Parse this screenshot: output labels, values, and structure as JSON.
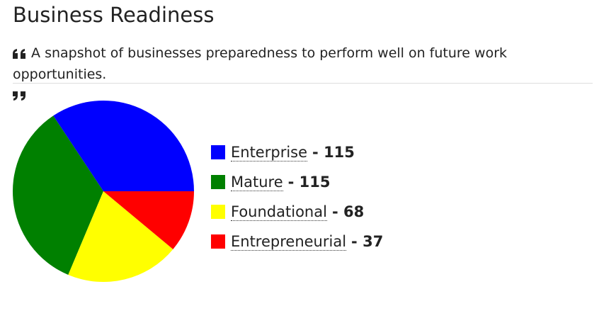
{
  "header": {
    "title": "Business Readiness",
    "subtitle": "A snapshot of businesses preparedness to perform well on future work opportunities."
  },
  "chart_data": {
    "type": "pie",
    "categories": [
      "Enterprise",
      "Mature",
      "Foundational",
      "Entrepreneurial"
    ],
    "values": [
      115,
      115,
      68,
      37
    ],
    "colors": [
      "#0000ff",
      "#008000",
      "#ffff00",
      "#ff0000"
    ],
    "separator": "-"
  }
}
